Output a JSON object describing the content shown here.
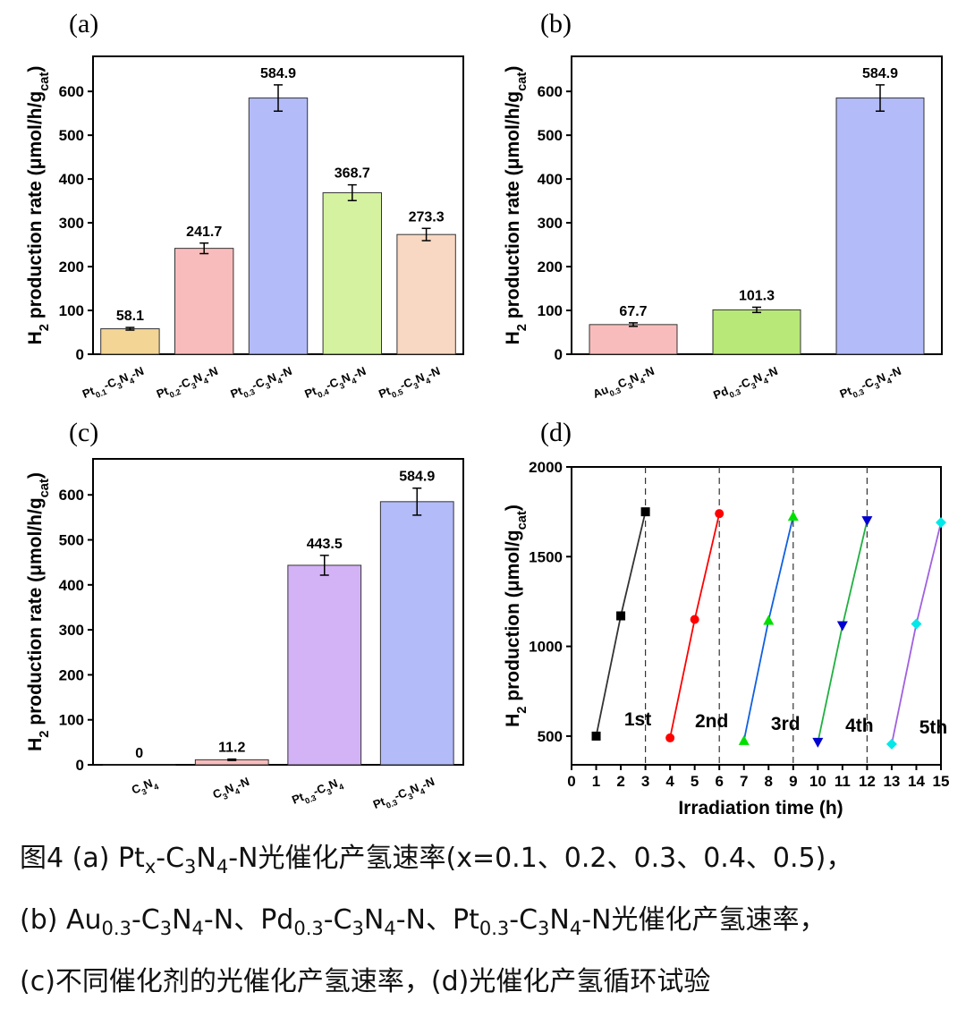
{
  "chart_data": [
    {
      "panel": "(a)",
      "type": "bar",
      "ylabel": {
        "main": "H",
        "sub1": "2",
        "mid": " production rate (μmol/h/g",
        "sub2": "cat",
        "end": ")"
      },
      "ylim": [
        0,
        680
      ],
      "yticks": [
        0,
        100,
        200,
        300,
        400,
        500,
        600
      ],
      "categories": [
        {
          "parts": [
            [
              "Pt",
              ""
            ],
            [
              "0.1",
              "sub"
            ],
            [
              "-C",
              ""
            ],
            [
              "3",
              "sub"
            ],
            [
              "N",
              ""
            ],
            [
              "4",
              "sub"
            ],
            [
              "-N",
              ""
            ]
          ]
        },
        {
          "parts": [
            [
              "Pt",
              ""
            ],
            [
              "0.2",
              "sub"
            ],
            [
              "-C",
              ""
            ],
            [
              "3",
              "sub"
            ],
            [
              "N",
              ""
            ],
            [
              "4",
              "sub"
            ],
            [
              "-N",
              ""
            ]
          ]
        },
        {
          "parts": [
            [
              "Pt",
              ""
            ],
            [
              "0.3",
              "sub"
            ],
            [
              "-C",
              ""
            ],
            [
              "3",
              "sub"
            ],
            [
              "N",
              ""
            ],
            [
              "4",
              "sub"
            ],
            [
              "-N",
              ""
            ]
          ]
        },
        {
          "parts": [
            [
              "Pt",
              ""
            ],
            [
              "0.4",
              "sub"
            ],
            [
              "-C",
              ""
            ],
            [
              "3",
              "sub"
            ],
            [
              "N",
              ""
            ],
            [
              "4",
              "sub"
            ],
            [
              "-N",
              ""
            ]
          ]
        },
        {
          "parts": [
            [
              "Pt",
              ""
            ],
            [
              "0.5",
              "sub"
            ],
            [
              "-C",
              ""
            ],
            [
              "3",
              "sub"
            ],
            [
              "N",
              ""
            ],
            [
              "4",
              "sub"
            ],
            [
              "-N",
              ""
            ]
          ]
        }
      ],
      "values": [
        58.1,
        241.7,
        584.9,
        368.7,
        273.3
      ],
      "value_labels": [
        "58.1",
        "241.7",
        "584.9",
        "368.7",
        "273.3"
      ],
      "errors": [
        3,
        12,
        30,
        18,
        14
      ],
      "colors": [
        "#f3d596",
        "#f9bcbc",
        "#b3bbf8",
        "#d4f2a0",
        "#f8d8c2"
      ]
    },
    {
      "panel": "(b)",
      "type": "bar",
      "ylabel": {
        "main": "H",
        "sub1": "2",
        "mid": " production rate (μmol/h/g",
        "sub2": "cat",
        "end": ")"
      },
      "ylim": [
        0,
        680
      ],
      "yticks": [
        0,
        100,
        200,
        300,
        400,
        500,
        600
      ],
      "categories": [
        {
          "parts": [
            [
              "Au",
              ""
            ],
            [
              "0.3",
              "sub"
            ],
            [
              "C",
              ""
            ],
            [
              "3",
              "sub"
            ],
            [
              "N",
              ""
            ],
            [
              "4",
              "sub"
            ],
            [
              "-N",
              ""
            ]
          ]
        },
        {
          "parts": [
            [
              "Pd",
              ""
            ],
            [
              "0.3",
              "sub"
            ],
            [
              "-C",
              ""
            ],
            [
              "3",
              "sub"
            ],
            [
              "N",
              ""
            ],
            [
              "4",
              "sub"
            ],
            [
              "-N",
              ""
            ]
          ]
        },
        {
          "parts": [
            [
              "Pt",
              ""
            ],
            [
              "0.3",
              "sub"
            ],
            [
              "-C",
              ""
            ],
            [
              "3",
              "sub"
            ],
            [
              "N",
              ""
            ],
            [
              "4",
              "sub"
            ],
            [
              "-N",
              ""
            ]
          ]
        }
      ],
      "values": [
        67.7,
        101.3,
        584.9
      ],
      "value_labels": [
        "67.7",
        "101.3",
        "584.9"
      ],
      "errors": [
        4,
        6,
        30
      ],
      "colors": [
        "#f9bcbc",
        "#b8e877",
        "#b3bbf8"
      ]
    },
    {
      "panel": "(c)",
      "type": "bar",
      "ylabel": {
        "main": "H",
        "sub1": "2",
        "mid": " production rate (μmol/h/g",
        "sub2": "cat",
        "end": ")"
      },
      "ylim": [
        0,
        680
      ],
      "yticks": [
        0,
        100,
        200,
        300,
        400,
        500,
        600
      ],
      "categories": [
        {
          "parts": [
            [
              "C",
              ""
            ],
            [
              "3",
              "sub"
            ],
            [
              "N",
              ""
            ],
            [
              "4",
              "sub"
            ]
          ]
        },
        {
          "parts": [
            [
              "C",
              ""
            ],
            [
              "3",
              "sub"
            ],
            [
              "N",
              ""
            ],
            [
              "4",
              "sub"
            ],
            [
              "-N",
              ""
            ]
          ]
        },
        {
          "parts": [
            [
              "Pt",
              ""
            ],
            [
              "0.3",
              "sub"
            ],
            [
              "-C",
              ""
            ],
            [
              "3",
              "sub"
            ],
            [
              "N",
              ""
            ],
            [
              "4",
              "sub"
            ]
          ]
        },
        {
          "parts": [
            [
              "Pt",
              ""
            ],
            [
              "0.3",
              "sub"
            ],
            [
              "-C",
              ""
            ],
            [
              "3",
              "sub"
            ],
            [
              "N",
              ""
            ],
            [
              "4",
              "sub"
            ],
            [
              "-N",
              ""
            ]
          ]
        }
      ],
      "values": [
        0,
        11.2,
        443.5,
        584.9
      ],
      "value_labels": [
        "0",
        "11.2",
        "443.5",
        "584.9"
      ],
      "errors": [
        0,
        1.5,
        22,
        30
      ],
      "colors": [
        "#f9bcbc",
        "#f9bcbc",
        "#d4b2f6",
        "#b3bbf8"
      ]
    },
    {
      "panel": "(d)",
      "type": "line",
      "ylabel": {
        "main": "H",
        "sub1": "2",
        "mid": " production (μmol/g",
        "sub2": "cat",
        "end": ")"
      },
      "xlabel": "Irradiation time (h)",
      "xlim": [
        0,
        15
      ],
      "ylim": [
        340,
        2000
      ],
      "xticks": [
        0,
        1,
        2,
        3,
        4,
        5,
        6,
        7,
        8,
        9,
        10,
        11,
        12,
        13,
        14,
        15
      ],
      "yticks": [
        500,
        1000,
        1500,
        2000
      ],
      "dashed_lines_x": [
        3,
        6,
        9,
        12
      ],
      "series": [
        {
          "name": "1st",
          "x": [
            1,
            2,
            3
          ],
          "y": [
            500,
            1170,
            1750
          ],
          "color": "#000000",
          "line": "#333333",
          "marker": "square"
        },
        {
          "name": "2nd",
          "x": [
            4,
            5,
            6
          ],
          "y": [
            490,
            1150,
            1740
          ],
          "color": "#ff0000",
          "line": "#ff0000",
          "marker": "circle"
        },
        {
          "name": "3rd",
          "x": [
            7,
            8,
            9
          ],
          "y": [
            475,
            1145,
            1725
          ],
          "color": "#00e000",
          "line": "#1060e0",
          "marker": "triangle-up"
        },
        {
          "name": "4th",
          "x": [
            10,
            11,
            12
          ],
          "y": [
            465,
            1115,
            1700
          ],
          "color": "#0000d0",
          "line": "#20b040",
          "marker": "triangle-down"
        },
        {
          "name": "5th",
          "x": [
            13,
            14,
            15
          ],
          "y": [
            455,
            1125,
            1690
          ],
          "color": "#00e8e8",
          "line": "#a060e0",
          "marker": "diamond"
        }
      ]
    }
  ],
  "caption": [
    {
      "parts": [
        [
          "图4 (a) Pt",
          ""
        ],
        [
          "x",
          "sub"
        ],
        [
          "-C",
          ""
        ],
        [
          "3",
          "sub"
        ],
        [
          "N",
          ""
        ],
        [
          "4",
          "sub"
        ],
        [
          "-N光催化产氢速率(x=0.1、0.2、0.3、0.4、0.5)，",
          ""
        ]
      ]
    },
    {
      "parts": [
        [
          "(b) Au",
          ""
        ],
        [
          "0.3",
          "sub"
        ],
        [
          "-C",
          ""
        ],
        [
          "3",
          "sub"
        ],
        [
          "N",
          ""
        ],
        [
          "4",
          "sub"
        ],
        [
          "-N、Pd",
          ""
        ],
        [
          "0.3",
          "sub"
        ],
        [
          "-C",
          ""
        ],
        [
          "3",
          "sub"
        ],
        [
          "N",
          ""
        ],
        [
          "4",
          "sub"
        ],
        [
          "-N、Pt",
          ""
        ],
        [
          "0.3",
          "sub"
        ],
        [
          "-C",
          ""
        ],
        [
          "3",
          "sub"
        ],
        [
          "N",
          ""
        ],
        [
          "4",
          "sub"
        ],
        [
          "-N光催化产氢速率，",
          ""
        ]
      ]
    },
    {
      "parts": [
        [
          "(c)不同催化剂的光催化产氢速率，(d)光催化产氢循环试验",
          ""
        ]
      ]
    }
  ]
}
